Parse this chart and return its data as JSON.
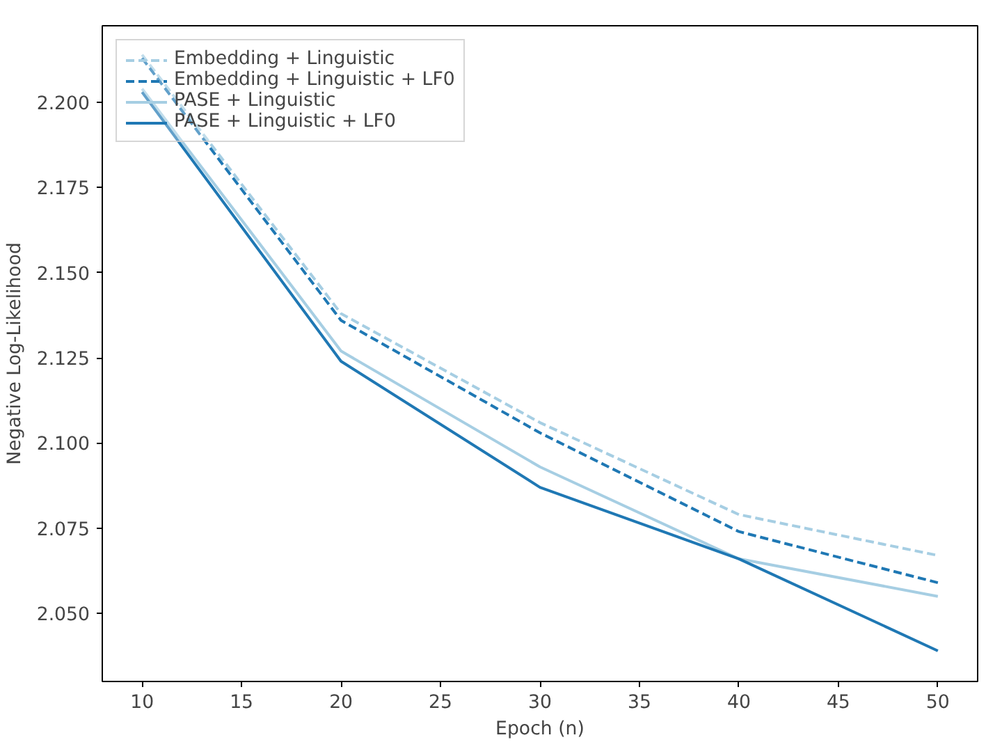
{
  "chart_data": {
    "type": "line",
    "xlabel": "Epoch (n)",
    "ylabel": "Negative Log-Likelihood",
    "x": [
      10,
      20,
      30,
      40,
      50
    ],
    "series": [
      {
        "name": "Embedding + Linguistic",
        "color": "#a6cee3",
        "line_style": "dashed",
        "values": [
          2.214,
          2.138,
          2.106,
          2.079,
          2.067
        ]
      },
      {
        "name": "Embedding + Linguistic + LF0",
        "color": "#1f78b4",
        "line_style": "dashed",
        "values": [
          2.213,
          2.136,
          2.103,
          2.074,
          2.059
        ]
      },
      {
        "name": "PASE + Linguistic",
        "color": "#a6cee3",
        "line_style": "solid",
        "values": [
          2.204,
          2.127,
          2.093,
          2.066,
          2.055
        ]
      },
      {
        "name": "PASE + Linguistic + LF0",
        "color": "#1f78b4",
        "line_style": "solid",
        "values": [
          2.203,
          2.124,
          2.087,
          2.066,
          2.039
        ]
      }
    ],
    "xlim": [
      8,
      52
    ],
    "ylim": [
      2.03,
      2.2225
    ],
    "xticks": [
      10,
      15,
      20,
      25,
      30,
      35,
      40,
      45,
      50
    ],
    "yticks": [
      {
        "value": 2.05,
        "label": "2.050"
      },
      {
        "value": 2.075,
        "label": "2.075"
      },
      {
        "value": 2.1,
        "label": "2.100"
      },
      {
        "value": 2.125,
        "label": "2.125"
      },
      {
        "value": 2.15,
        "label": "2.150"
      },
      {
        "value": 2.175,
        "label": "2.175"
      },
      {
        "value": 2.2,
        "label": "2.200"
      }
    ],
    "grid": false,
    "legend": "top left",
    "marker": "none"
  }
}
